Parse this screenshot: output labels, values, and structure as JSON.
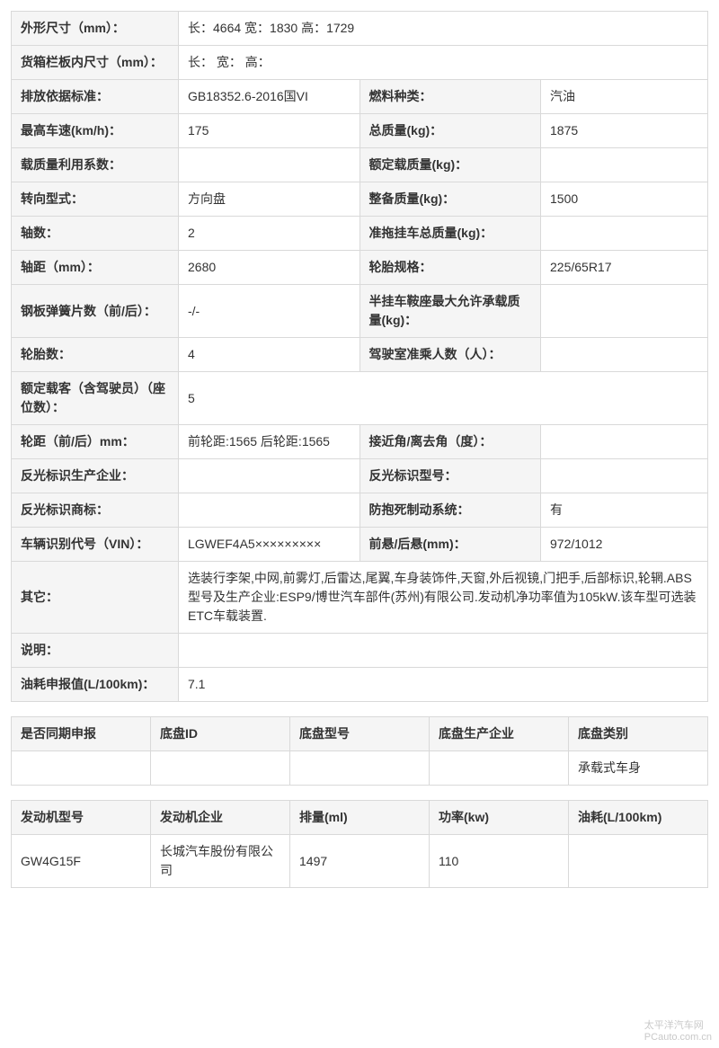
{
  "main_table": {
    "rows": [
      {
        "type": "full",
        "label": "外形尺寸（mm）：",
        "value": "长：4664 宽：1830 高：1729"
      },
      {
        "type": "full",
        "label": "货箱栏板内尺寸（mm）：",
        "value": "长：  宽：  高："
      },
      {
        "type": "pair",
        "label1": "排放依据标准：",
        "value1": "GB18352.6-2016国VI",
        "label2": "燃料种类：",
        "value2": "汽油"
      },
      {
        "type": "pair",
        "label1": "最高车速(km/h)：",
        "value1": "175",
        "label2": "总质量(kg)：",
        "value2": "1875"
      },
      {
        "type": "pair",
        "label1": "载质量利用系数：",
        "value1": "",
        "label2": "额定载质量(kg)：",
        "value2": ""
      },
      {
        "type": "pair",
        "label1": "转向型式：",
        "value1": "方向盘",
        "label2": "整备质量(kg)：",
        "value2": "1500"
      },
      {
        "type": "pair",
        "label1": "轴数：",
        "value1": "2",
        "label2": "准拖挂车总质量(kg)：",
        "value2": ""
      },
      {
        "type": "pair",
        "label1": "轴距（mm）：",
        "value1": "2680",
        "label2": "轮胎规格：",
        "value2": "225/65R17"
      },
      {
        "type": "pair",
        "label1": "钢板弹簧片数（前/后）：",
        "value1": "-/-",
        "label2": "半挂车鞍座最大允许承载质量(kg)：",
        "value2": ""
      },
      {
        "type": "pair",
        "label1": "轮胎数：",
        "value1": "4",
        "label2": "驾驶室准乘人数（人）：",
        "value2": ""
      },
      {
        "type": "full",
        "label": "额定载客（含驾驶员）（座位数）：",
        "value": "5"
      },
      {
        "type": "pair",
        "label1": "轮距（前/后）mm：",
        "value1": "前轮距:1565 后轮距:1565",
        "label2": "接近角/离去角（度）：",
        "value2": ""
      },
      {
        "type": "pair",
        "label1": "反光标识生产企业：",
        "value1": "",
        "label2": "反光标识型号：",
        "value2": ""
      },
      {
        "type": "pair",
        "label1": "反光标识商标：",
        "value1": "",
        "label2": "防抱死制动系统：",
        "value2": "有"
      },
      {
        "type": "pair",
        "label1": "车辆识别代号（VIN）：",
        "value1": "LGWEF4A5×××××××××",
        "label2": "前悬/后悬(mm)：",
        "value2": "972/1012"
      },
      {
        "type": "full",
        "label": "其它：",
        "value": "选装行李架,中网,前雾灯,后雷达,尾翼,车身装饰件,天窗,外后视镜,门把手,后部标识,轮辋.ABS型号及生产企业:ESP9/博世汽车部件(苏州)有限公司.发动机净功率值为105kW.该车型可选装ETC车载装置."
      },
      {
        "type": "full",
        "label": "说明：",
        "value": ""
      },
      {
        "type": "full",
        "label": "油耗申报值(L/100km)：",
        "value": "7.1"
      }
    ]
  },
  "chassis_table": {
    "headers": [
      "是否同期申报",
      "底盘ID",
      "底盘型号",
      "底盘生产企业",
      "底盘类别"
    ],
    "rows": [
      [
        "",
        "",
        "",
        "",
        "承载式车身"
      ]
    ]
  },
  "engine_table": {
    "headers": [
      "发动机型号",
      "发动机企业",
      "排量(ml)",
      "功率(kw)",
      "油耗(L/100km)"
    ],
    "rows": [
      [
        "GW4G15F",
        "长城汽车股份有限公司",
        "1497",
        "110",
        ""
      ]
    ]
  },
  "watermark_top": "太平洋汽车网",
  "watermark_bottom": "PCauto.com.cn"
}
